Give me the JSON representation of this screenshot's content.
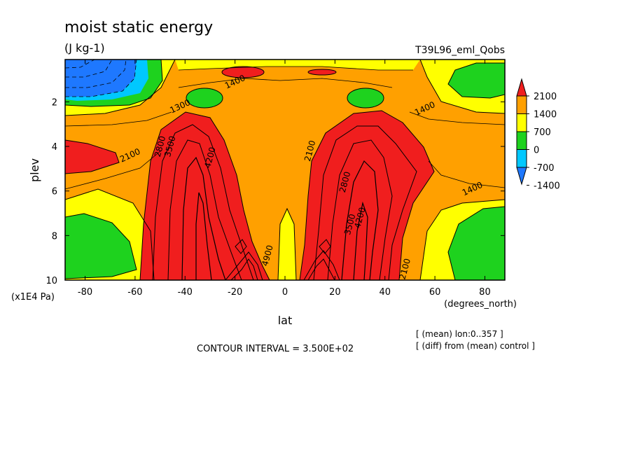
{
  "chart_data": {
    "type": "heatmap",
    "title": "moist static energy",
    "units": "(J kg-1)",
    "experiment": "T39L96_eml_Qobs",
    "xlabel": "lat",
    "xunits": "(degrees_north)",
    "ylabel": "plev",
    "yunits": "(x1E4 Pa)",
    "xlim": [
      -88,
      88
    ],
    "ylim": [
      10,
      0.1
    ],
    "xticks": [
      -80,
      -60,
      -40,
      -20,
      0,
      20,
      40,
      60,
      80
    ],
    "xtick_labels": [
      "-80",
      "-60",
      "-40",
      "-20",
      "0",
      "20",
      "40",
      "60",
      "80"
    ],
    "yticks": [
      2,
      4,
      6,
      8,
      10
    ],
    "ytick_labels": [
      "2",
      "4",
      "6",
      "8",
      "10"
    ],
    "contour_interval_text": "CONTOUR INTERVAL = 3.500E+02",
    "notes": [
      "[ (mean) lon:0..357 ]",
      "[ (diff) from (mean) control ]"
    ],
    "colorbar": {
      "levels": [
        -1400,
        -700,
        0,
        700,
        1400,
        2100
      ],
      "labels": [
        "2100",
        "1400",
        "700",
        "0",
        "-700",
        "-1400"
      ],
      "colors": [
        "#1e78ff",
        "#00c8ff",
        "#1ed21e",
        "#ffff00",
        "#ffa000",
        "#f01e1e"
      ]
    },
    "contour_labels": [
      {
        "text": "1400",
        "lat": -20,
        "plev": 1.1
      },
      {
        "text": "1400",
        "lat": 56,
        "plev": 2.3
      },
      {
        "text": "1400",
        "lat": 75,
        "plev": 5.9
      },
      {
        "text": "1300",
        "lat": -42,
        "plev": 2.2
      },
      {
        "text": "2100",
        "lat": -62,
        "plev": 4.4
      },
      {
        "text": "2800",
        "lat": -50,
        "plev": 4.0
      },
      {
        "text": "3500",
        "lat": -46,
        "plev": 4.0
      },
      {
        "text": "4200",
        "lat": -30,
        "plev": 4.5
      },
      {
        "text": "2100",
        "lat": 10,
        "plev": 4.2
      },
      {
        "text": "2800",
        "lat": 24,
        "plev": 5.6
      },
      {
        "text": "3500",
        "lat": 26,
        "plev": 7.5
      },
      {
        "text": "4200",
        "lat": 30,
        "plev": 7.2
      },
      {
        "text": "4900",
        "lat": -7,
        "plev": 8.9
      },
      {
        "text": "2100",
        "lat": 48,
        "plev": 9.5
      }
    ]
  }
}
